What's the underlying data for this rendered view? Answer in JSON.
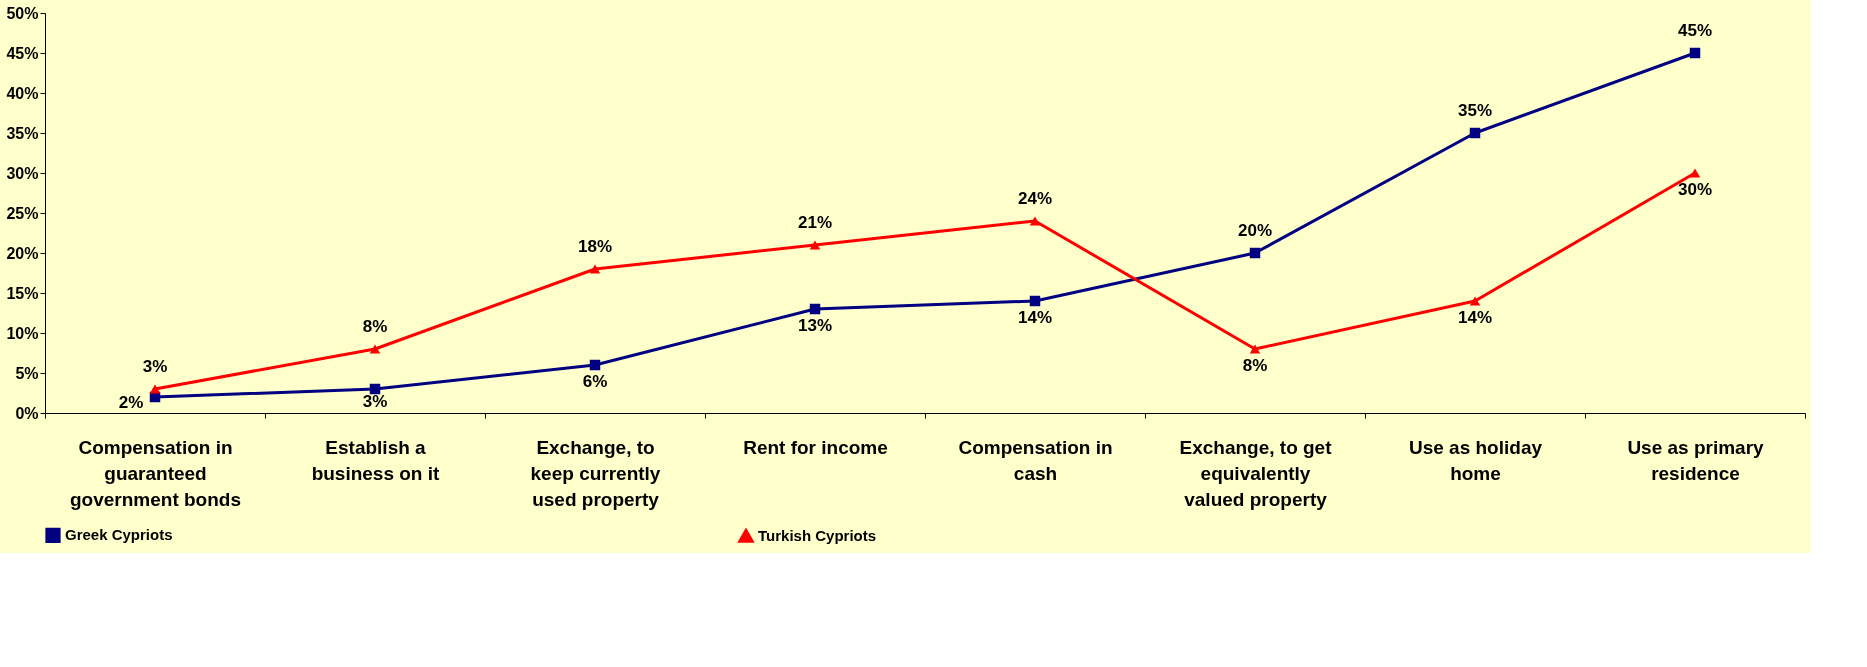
{
  "chart_data": {
    "type": "line",
    "categories": [
      "Compensation in guaranteed government bonds",
      "Establish a business on it",
      "Exchange, to keep currently used property",
      "Rent for income",
      "Compensation in cash",
      "Exchange, to get equivalently valued property",
      "Use as holiday home",
      "Use as primary residence"
    ],
    "series": [
      {
        "name": "Greek Cypriots",
        "color": "#000080",
        "marker": "square",
        "values": [
          2,
          3,
          6,
          13,
          14,
          20,
          35,
          45
        ]
      },
      {
        "name": "Turkish Cypriots",
        "color": "#ff0000",
        "marker": "triangle",
        "values": [
          3,
          8,
          18,
          21,
          24,
          8,
          14,
          30
        ]
      }
    ],
    "ylim": [
      0,
      50
    ],
    "yticks": [
      {
        "value": 0,
        "label": "0%"
      },
      {
        "value": 5,
        "label": "5%"
      },
      {
        "value": 10,
        "label": "10%"
      },
      {
        "value": 15,
        "label": "15%"
      },
      {
        "value": 20,
        "label": "20%"
      },
      {
        "value": 25,
        "label": "25%"
      },
      {
        "value": 30,
        "label": "30%"
      },
      {
        "value": 35,
        "label": "35%"
      },
      {
        "value": 40,
        "label": "40%"
      },
      {
        "value": 45,
        "label": "45%"
      },
      {
        "value": 50,
        "label": "50%"
      }
    ],
    "value_labels": [
      [
        "2%",
        "3%",
        "6%",
        "13%",
        "14%",
        "20%",
        "35%",
        "45%"
      ],
      [
        "3%",
        "8%",
        "18%",
        "21%",
        "24%",
        "8%",
        "14%",
        "30%"
      ]
    ],
    "grid": false,
    "legend": "bottom",
    "line_style": "solid"
  }
}
